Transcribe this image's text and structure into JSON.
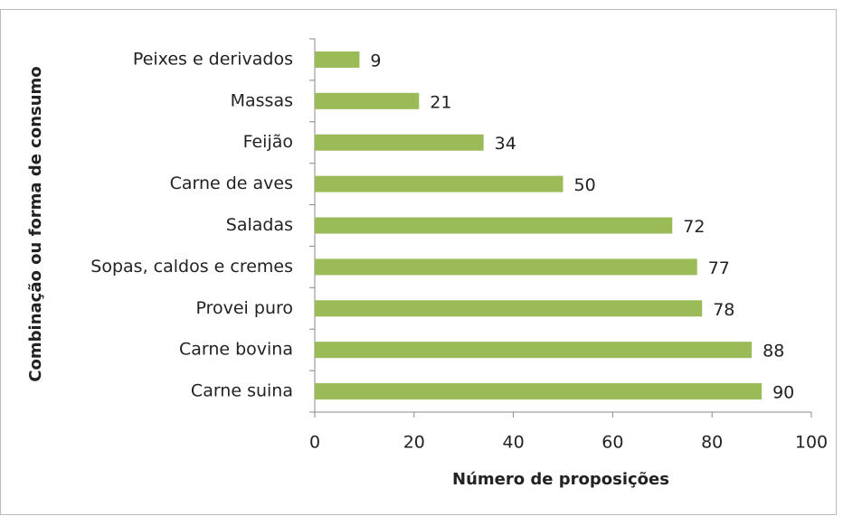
{
  "chart_data": {
    "type": "bar",
    "orientation": "horizontal",
    "xlabel": "Número de proposições",
    "ylabel": "Combinação ou forma de consumo",
    "categories": [
      "Peixes e derivados",
      "Massas",
      "Feijão",
      "Carne de aves",
      "Saladas",
      "Sopas, caldos e cremes",
      "Provei puro",
      "Carne bovina",
      "Carne suina"
    ],
    "values": [
      9,
      21,
      34,
      50,
      72,
      77,
      78,
      88,
      90
    ],
    "color": "#9bbb59",
    "xlim": [
      0,
      100
    ],
    "xticks": [
      0,
      20,
      40,
      60,
      80,
      100
    ],
    "grid": false
  }
}
